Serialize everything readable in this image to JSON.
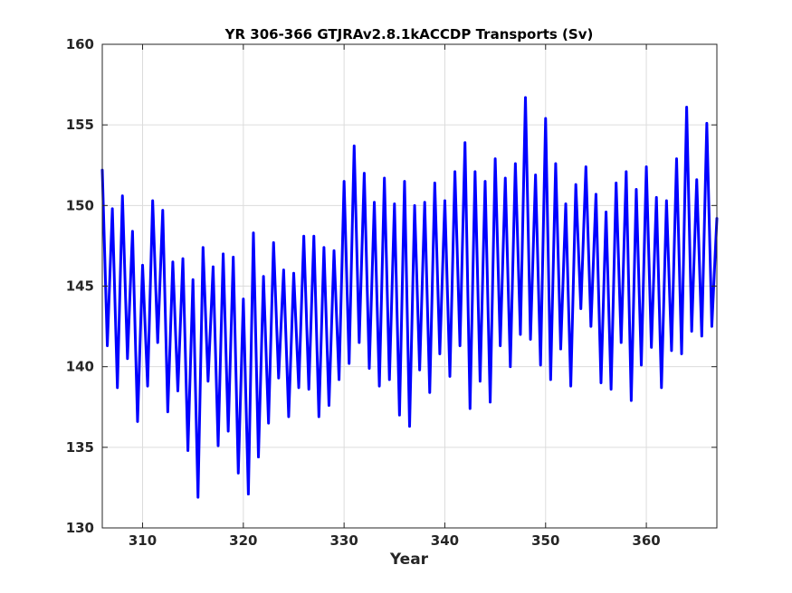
{
  "chart_data": {
    "type": "line",
    "title": "YR 306-366 GTJRAv2.8.1kACCDP Transports (Sv)",
    "xlabel": "Year",
    "ylabel": "",
    "xlim": [
      306,
      367
    ],
    "ylim": [
      130,
      160
    ],
    "xticks": [
      310,
      320,
      330,
      340,
      350,
      360
    ],
    "yticks": [
      130,
      135,
      140,
      145,
      150,
      155,
      160
    ],
    "xtick_labels": [
      "310",
      "320",
      "330",
      "340",
      "350",
      "360"
    ],
    "ytick_labels": [
      "130",
      "135",
      "140",
      "145",
      "150",
      "155",
      "160"
    ],
    "grid": true,
    "series_color": "#0000ff",
    "x": [
      306.0,
      306.5,
      307.0,
      307.5,
      308.0,
      308.5,
      309.0,
      309.5,
      310.0,
      310.5,
      311.0,
      311.5,
      312.0,
      312.5,
      313.0,
      313.5,
      314.0,
      314.5,
      315.0,
      315.5,
      316.0,
      316.5,
      317.0,
      317.5,
      318.0,
      318.5,
      319.0,
      319.5,
      320.0,
      320.5,
      321.0,
      321.5,
      322.0,
      322.5,
      323.0,
      323.5,
      324.0,
      324.5,
      325.0,
      325.5,
      326.0,
      326.5,
      327.0,
      327.5,
      328.0,
      328.5,
      329.0,
      329.5,
      330.0,
      330.5,
      331.0,
      331.5,
      332.0,
      332.5,
      333.0,
      333.5,
      334.0,
      334.5,
      335.0,
      335.5,
      336.0,
      336.5,
      337.0,
      337.5,
      338.0,
      338.5,
      339.0,
      339.5,
      340.0,
      340.5,
      341.0,
      341.5,
      342.0,
      342.5,
      343.0,
      343.5,
      344.0,
      344.5,
      345.0,
      345.5,
      346.0,
      346.5,
      347.0,
      347.5,
      348.0,
      348.5,
      349.0,
      349.5,
      350.0,
      350.5,
      351.0,
      351.5,
      352.0,
      352.5,
      353.0,
      353.5,
      354.0,
      354.5,
      355.0,
      355.5,
      356.0,
      356.5,
      357.0,
      357.5,
      358.0,
      358.5,
      359.0,
      359.5,
      360.0,
      360.5,
      361.0,
      361.5,
      362.0,
      362.5,
      363.0,
      363.5,
      364.0,
      364.5,
      365.0,
      365.5,
      366.0,
      366.5,
      367.0
    ],
    "series": [
      {
        "values": [
          152.2,
          141.3,
          149.8,
          138.7,
          150.6,
          140.5,
          148.4,
          136.6,
          146.3,
          138.8,
          150.3,
          141.5,
          149.7,
          137.2,
          146.5,
          138.5,
          146.7,
          134.8,
          145.4,
          131.9,
          147.4,
          139.1,
          146.2,
          135.1,
          147.0,
          136.0,
          146.8,
          133.4,
          144.2,
          132.1,
          148.3,
          134.4,
          145.6,
          136.5,
          147.7,
          139.3,
          146.0,
          136.9,
          145.8,
          138.7,
          148.1,
          138.6,
          148.1,
          136.9,
          147.4,
          137.6,
          147.2,
          139.2,
          151.5,
          140.2,
          153.7,
          141.5,
          152.0,
          139.9,
          150.2,
          138.8,
          151.7,
          139.2,
          150.1,
          137.0,
          151.5,
          136.3,
          150.0,
          139.8,
          150.2,
          138.4,
          151.4,
          140.8,
          150.3,
          139.4,
          152.1,
          141.3,
          153.9,
          137.4,
          152.1,
          139.1,
          151.5,
          137.8,
          152.9,
          141.3,
          151.7,
          140.0,
          152.6,
          142.0,
          156.7,
          141.7,
          151.9,
          140.1,
          155.4,
          139.2,
          152.6,
          141.1,
          150.1,
          138.8,
          151.3,
          143.6,
          152.4,
          142.5,
          150.7,
          139.0,
          149.6,
          138.6,
          151.4,
          141.5,
          152.1,
          137.9,
          151.0,
          140.1,
          152.4,
          141.2,
          150.5,
          138.7,
          150.3,
          141.0,
          152.9,
          140.8,
          156.1,
          142.2,
          151.6,
          141.9,
          155.1,
          142.5,
          149.2
        ]
      }
    ]
  }
}
